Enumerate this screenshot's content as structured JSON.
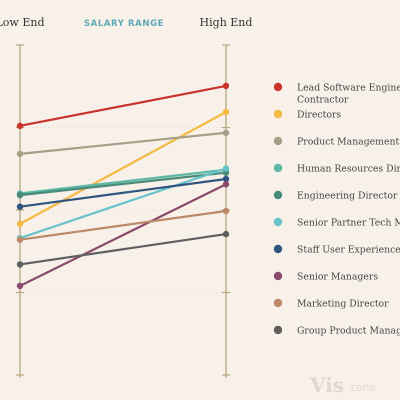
{
  "header": {
    "left_label": "Low End",
    "center_label": "SALARY RANGE",
    "right_label": "High End"
  },
  "colors": {
    "background": "#f7f1ea",
    "axis": "#b9a67f",
    "center_label": "#5fa9b5",
    "logo": "#e0d8cf"
  },
  "logo": {
    "main": "Vis",
    "sub": "zone"
  },
  "chart_data": {
    "type": "slope",
    "categories": [
      "Low End",
      "High End"
    ],
    "title": "SALARY RANGE",
    "ylim": [
      0,
      1
    ],
    "grid": true,
    "legend_placement": "right",
    "series": [
      {
        "name": "Lead Software Engineer / Contractor",
        "label_lines": [
          "Lead Software Engineer /",
          "Contractor"
        ],
        "color": "#c9352c",
        "values": [
          0.755,
          0.876
        ]
      },
      {
        "name": "Directors",
        "label_lines": [
          "Directors"
        ],
        "color": "#f4b943",
        "values": [
          0.458,
          0.797
        ]
      },
      {
        "name": "Product Management Director",
        "label_lines": [
          "Product Management Director"
        ],
        "color": "#a79e88",
        "values": [
          0.67,
          0.734
        ]
      },
      {
        "name": "Human Resources Director",
        "label_lines": [
          "Human Resources Director"
        ],
        "color": "#5cb7a6",
        "values": [
          0.55,
          0.622
        ]
      },
      {
        "name": "Engineering Director",
        "label_lines": [
          "Engineering Director"
        ],
        "color": "#4a8a78",
        "values": [
          0.545,
          0.613
        ]
      },
      {
        "name": "Senior Partner Tech Manager",
        "label_lines": [
          "Senior Partner Tech Manager"
        ],
        "color": "#68c3c8",
        "values": [
          0.415,
          0.626
        ]
      },
      {
        "name": "Staff User Experience Designer",
        "label_lines": [
          "Staff User Experience Designer"
        ],
        "color": "#2f567e",
        "values": [
          0.51,
          0.594
        ]
      },
      {
        "name": "Senior Managers",
        "label_lines": [
          "Senior Managers"
        ],
        "color": "#8c4a6d",
        "values": [
          0.27,
          0.578
        ]
      },
      {
        "name": "Marketing Director",
        "label_lines": [
          "Marketing Director"
        ],
        "color": "#bc8968",
        "values": [
          0.41,
          0.497
        ]
      },
      {
        "name": "Group Product Manager",
        "label_lines": [
          "Group Product Manager"
        ],
        "color": "#5f5f5f",
        "values": [
          0.335,
          0.427
        ]
      }
    ]
  }
}
